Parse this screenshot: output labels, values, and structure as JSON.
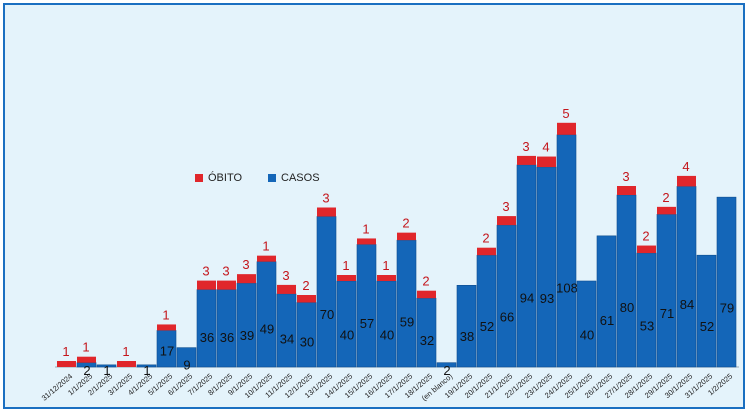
{
  "chart_data": {
    "type": "bar",
    "stacked": true,
    "categories": [
      "31/12/2024",
      "1/1/2025",
      "2/1/2025",
      "3/1/2025",
      "4/1/2025",
      "5/1/2025",
      "6/1/2025",
      "7/1/2025",
      "8/1/2025",
      "9/1/2025",
      "10/1/2025",
      "11/1/2025",
      "12/1/2025",
      "13/1/2025",
      "14/1/2025",
      "15/1/2025",
      "16/1/2025",
      "17/1/2025",
      "18/1/2025",
      "(en blanco)",
      "19/1/2025",
      "20/1/2025",
      "21/1/2025",
      "22/1/2025",
      "23/1/2025",
      "24/1/2025",
      "25/1/2025",
      "26/1/2025",
      "27/1/2025",
      "28/1/2025",
      "29/1/2025",
      "30/1/2025",
      "31/1/2025",
      "1/2/2025"
    ],
    "series": [
      {
        "name": "CASOS",
        "color": "#1466b8",
        "values": [
          0,
          2,
          1,
          0,
          1,
          17,
          9,
          36,
          36,
          39,
          49,
          34,
          30,
          70,
          40,
          57,
          40,
          59,
          32,
          2,
          38,
          52,
          66,
          94,
          93,
          108,
          40,
          61,
          80,
          53,
          71,
          84,
          52,
          79
        ]
      },
      {
        "name": "ÓBITO",
        "color": "#e0262b",
        "values": [
          1,
          1,
          0,
          1,
          0,
          1,
          0,
          3,
          3,
          3,
          1,
          3,
          2,
          3,
          1,
          1,
          1,
          2,
          2,
          0,
          0,
          2,
          3,
          3,
          4,
          5,
          0,
          0,
          3,
          2,
          2,
          4,
          0,
          0
        ]
      }
    ],
    "legend": "center-left",
    "grid": false
  }
}
